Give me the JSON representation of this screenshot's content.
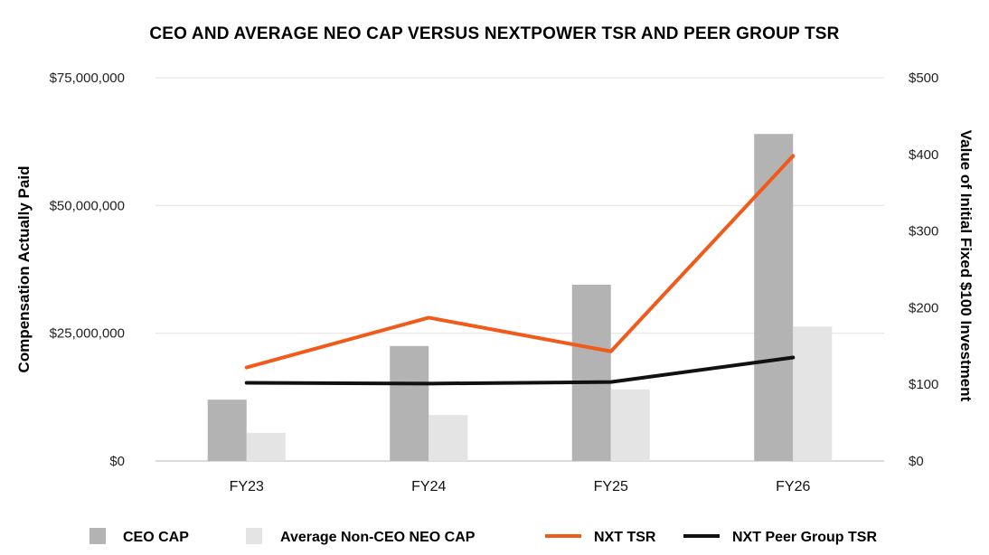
{
  "chart_data": {
    "type": "bar",
    "title": "CEO AND AVERAGE NEO CAP VERSUS NEXTPOWER TSR AND PEER GROUP TSR",
    "categories": [
      "FY23",
      "FY24",
      "FY25",
      "FY26"
    ],
    "ylabel": "Compensation Actually Paid",
    "y2label": "Value of Initial Fixed $100 Investment",
    "ylim": [
      0,
      75000000
    ],
    "y2lim": [
      0,
      500
    ],
    "y_ticks": [
      0,
      25000000,
      50000000,
      75000000
    ],
    "y_tick_labels": [
      "$0",
      "$25,000,000",
      "$50,000,000",
      "$75,000,000"
    ],
    "y2_ticks": [
      0,
      100,
      200,
      300,
      400,
      500
    ],
    "y2_tick_labels": [
      "$0",
      "$100",
      "$200",
      "$300",
      "$400",
      "$500"
    ],
    "grid": true,
    "legend_position": "bottom",
    "bar_series": [
      {
        "name": "CEO CAP",
        "color": "#b3b3b3",
        "values": [
          12000000,
          22500000,
          34500000,
          64000000
        ]
      },
      {
        "name": "Average Non-CEO NEO CAP",
        "color": "#e4e4e4",
        "values": [
          5500000,
          9000000,
          14000000,
          26300000
        ]
      }
    ],
    "line_series": [
      {
        "name": "NXT TSR",
        "color": "#f05a1a",
        "axis": "right",
        "values": [
          122,
          187,
          143,
          398
        ]
      },
      {
        "name": "NXT Peer Group TSR",
        "color": "#111111",
        "axis": "right",
        "values": [
          102,
          101,
          103,
          135
        ]
      }
    ]
  }
}
